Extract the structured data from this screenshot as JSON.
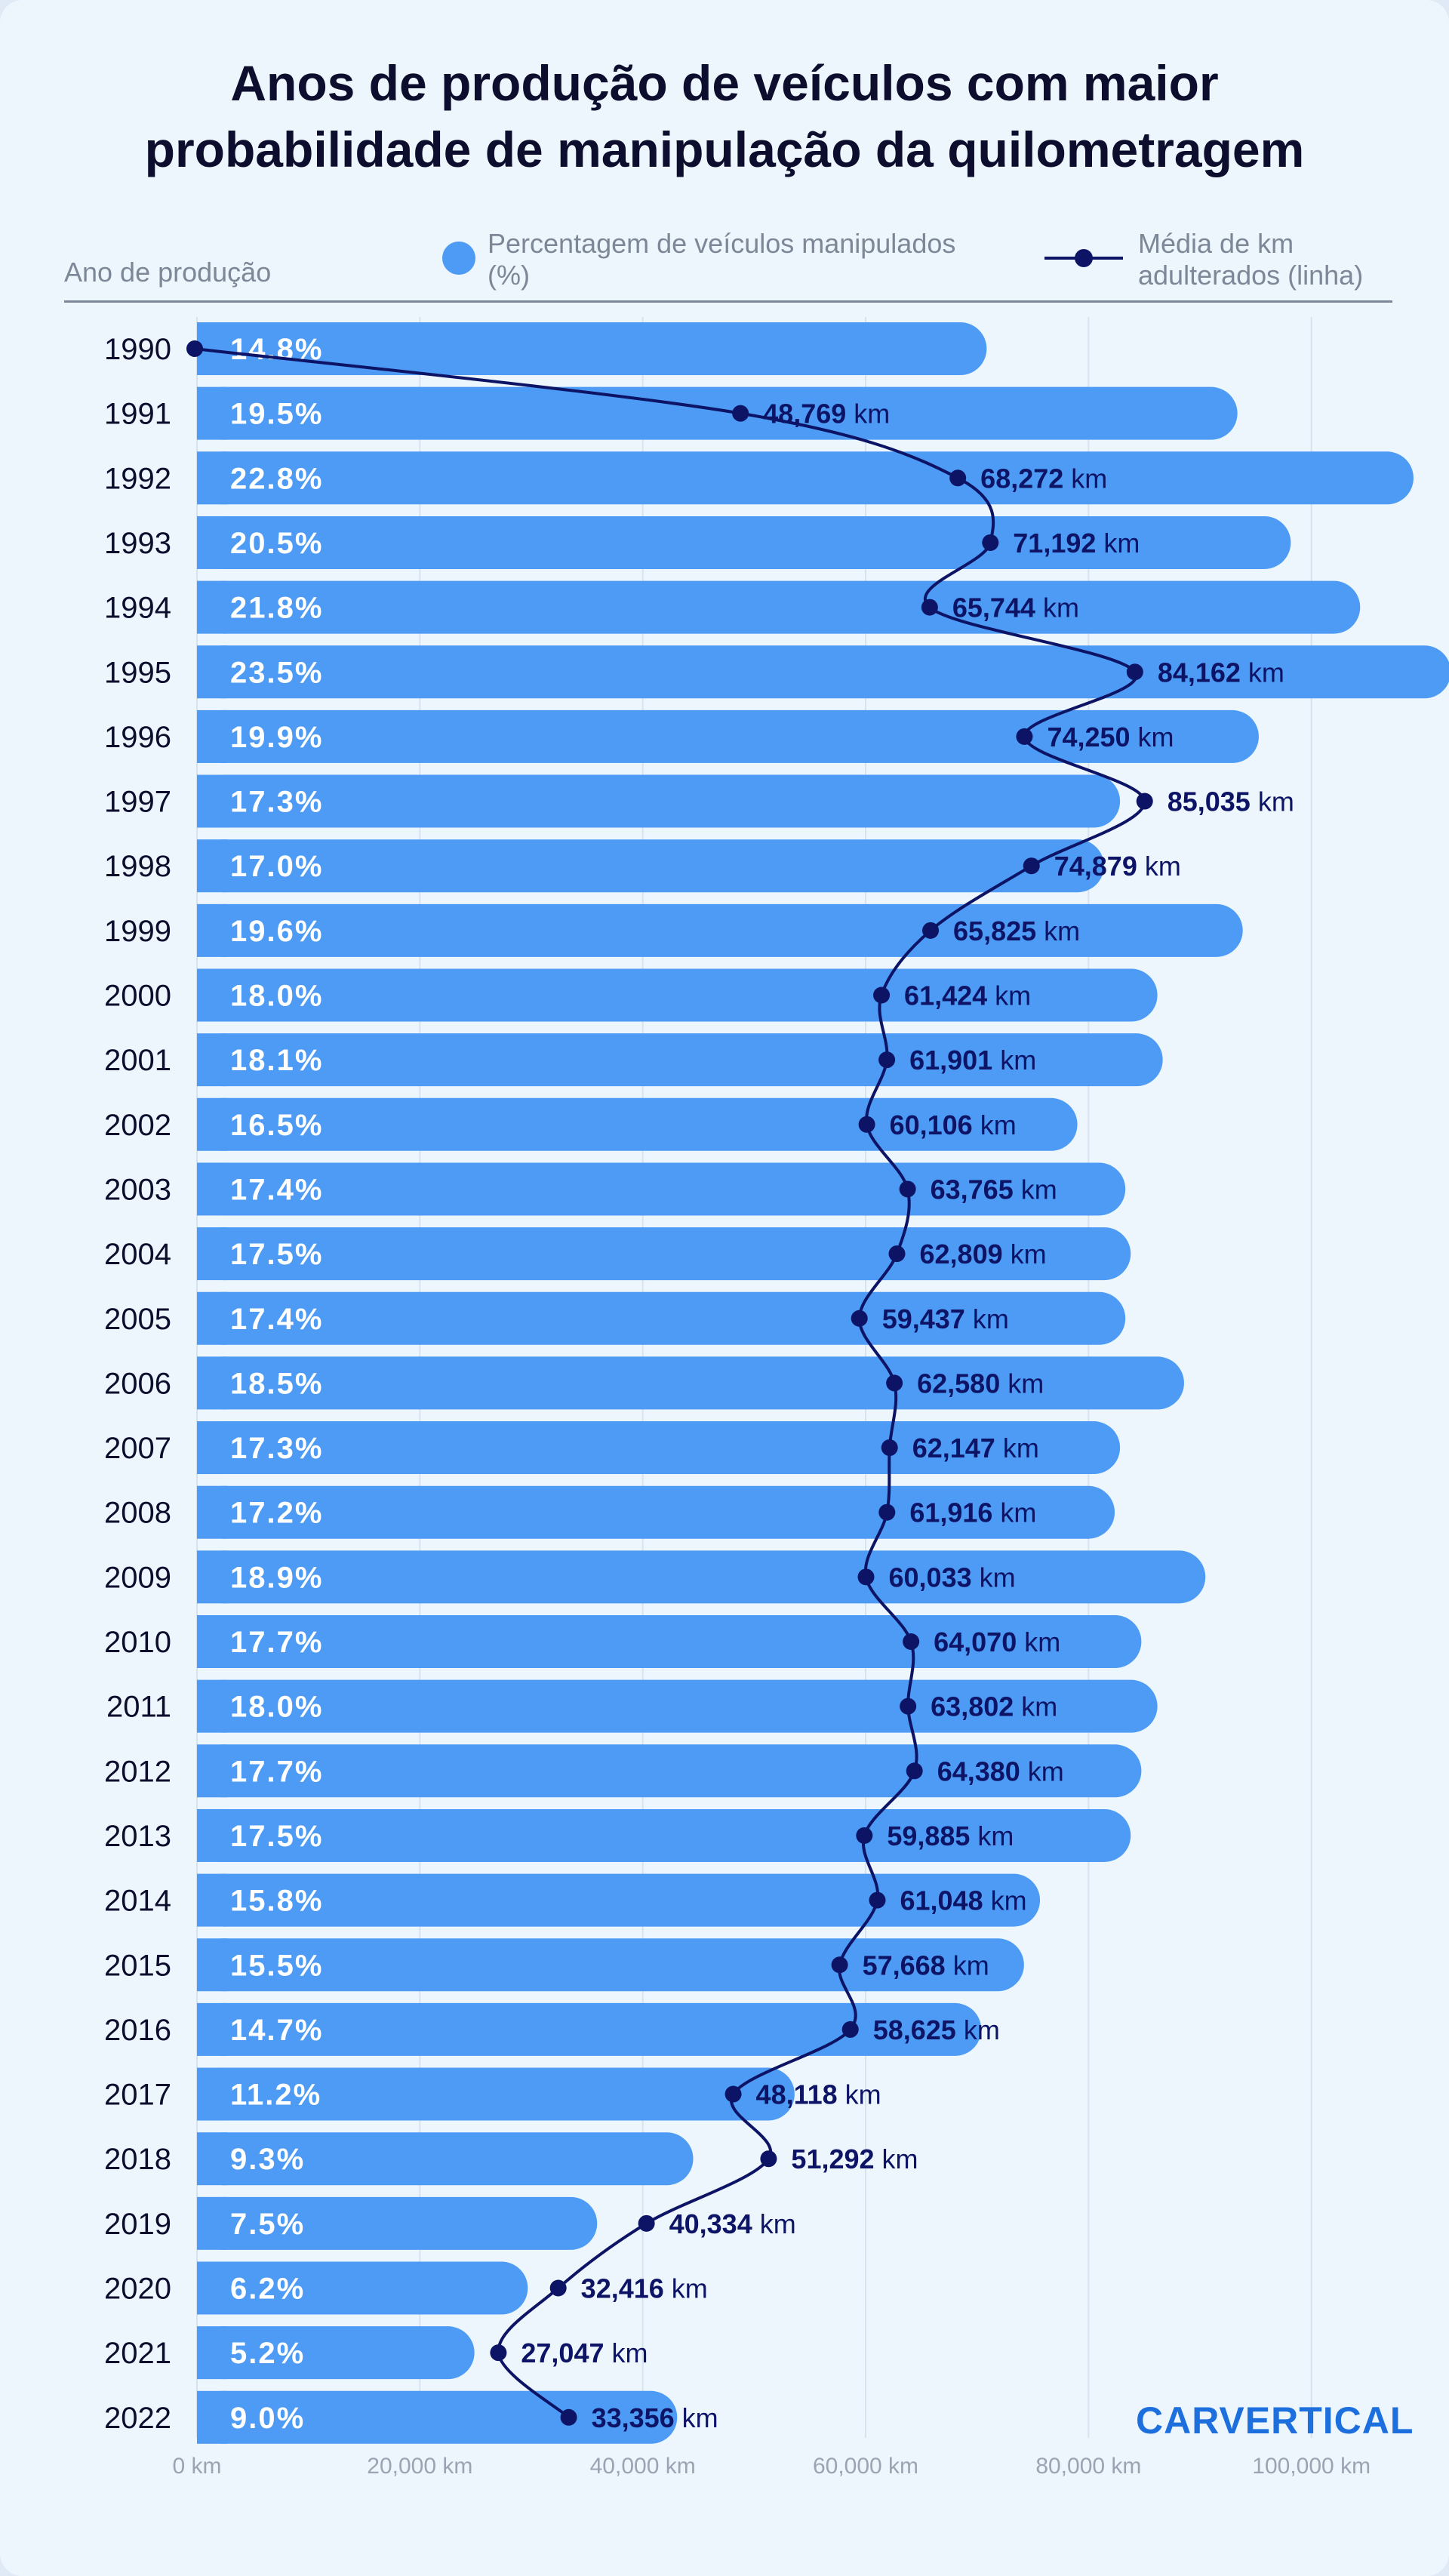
{
  "title_line1": "Anos de produção de veículos com maior",
  "title_line2": "probabilidade de manipulação da quilometragem",
  "y_header": "Ano de produção",
  "legend": {
    "bars": "Percentagem de veículos manipulados (%)",
    "line": "Média de km adulterados (linha)"
  },
  "brand": "CARVERTICAL",
  "colors": {
    "bar": "#4d9bf5",
    "line": "#0d1466",
    "background": "#eef6fd",
    "bar_label": "#ffffff",
    "axis_text": "#9aa4b2"
  },
  "chart_data": {
    "type": "bar",
    "orientation": "horizontal",
    "categories": [
      "1990",
      "1991",
      "1992",
      "1993",
      "1994",
      "1995",
      "1996",
      "1997",
      "1998",
      "1999",
      "2000",
      "2001",
      "2002",
      "2003",
      "2004",
      "2005",
      "2006",
      "2007",
      "2008",
      "2009",
      "2010",
      "2011",
      "2012",
      "2013",
      "2014",
      "2015",
      "2016",
      "2017",
      "2018",
      "2019",
      "2020",
      "2021",
      "2022"
    ],
    "series": [
      {
        "name": "Percentagem de veículos manipulados (%)",
        "type": "bar",
        "values": [
          14.8,
          19.5,
          22.8,
          20.5,
          21.8,
          23.5,
          19.9,
          17.3,
          17.0,
          19.6,
          18.0,
          18.1,
          16.5,
          17.4,
          17.5,
          17.4,
          18.5,
          17.3,
          17.2,
          18.9,
          17.7,
          18.0,
          17.7,
          17.5,
          15.8,
          15.5,
          14.7,
          11.2,
          9.3,
          7.5,
          6.2,
          5.2,
          9.0
        ],
        "labels": [
          "14.8%",
          "19.5%",
          "22.8%",
          "20.5%",
          "21.8%",
          "23.5%",
          "19.9%",
          "17.3%",
          "17.0%",
          "19.6%",
          "18.0%",
          "18.1%",
          "16.5%",
          "17.4%",
          "17.5%",
          "17.4%",
          "18.5%",
          "17.3%",
          "17.2%",
          "18.9%",
          "17.7%",
          "18.0%",
          "17.7%",
          "17.5%",
          "15.8%",
          "15.5%",
          "14.7%",
          "11.2%",
          "9.3%",
          "7.5%",
          "6.2%",
          "5.2%",
          "9.0%"
        ]
      },
      {
        "name": "Média de km adulterados (linha)",
        "type": "line",
        "values": [
          null,
          48769,
          68272,
          71192,
          65744,
          84162,
          74250,
          85035,
          74879,
          65825,
          61424,
          61901,
          60106,
          63765,
          62809,
          59437,
          62580,
          62147,
          61916,
          60033,
          64070,
          63802,
          64380,
          59885,
          61048,
          57668,
          58625,
          48118,
          51292,
          40334,
          32416,
          27047,
          33356
        ],
        "labels": [
          "",
          "48,769",
          "68,272",
          "71,192",
          "65,744",
          "84,162",
          "74,250",
          "85,035",
          "74,879",
          "65,825",
          "61,424",
          "61,901",
          "60,106",
          "63,765",
          "62,809",
          "59,437",
          "62,580",
          "62,147",
          "61,916",
          "60,033",
          "64,070",
          "63,802",
          "64,380",
          "59,885",
          "61,048",
          "57,668",
          "58,625",
          "48,118",
          "51,292",
          "40,334",
          "32,416",
          "27,047",
          "33,356"
        ],
        "unit": "km"
      }
    ],
    "x_axis": {
      "ticks": [
        0,
        20000,
        40000,
        60000,
        80000,
        100000
      ],
      "tick_labels": [
        "0 km",
        "20,000 km",
        "40,000 km",
        "60,000 km",
        "80,000 km",
        "100,000 km"
      ],
      "range": [
        0,
        108000
      ]
    },
    "grid": "vertical gridlines",
    "legend_position": "top"
  }
}
